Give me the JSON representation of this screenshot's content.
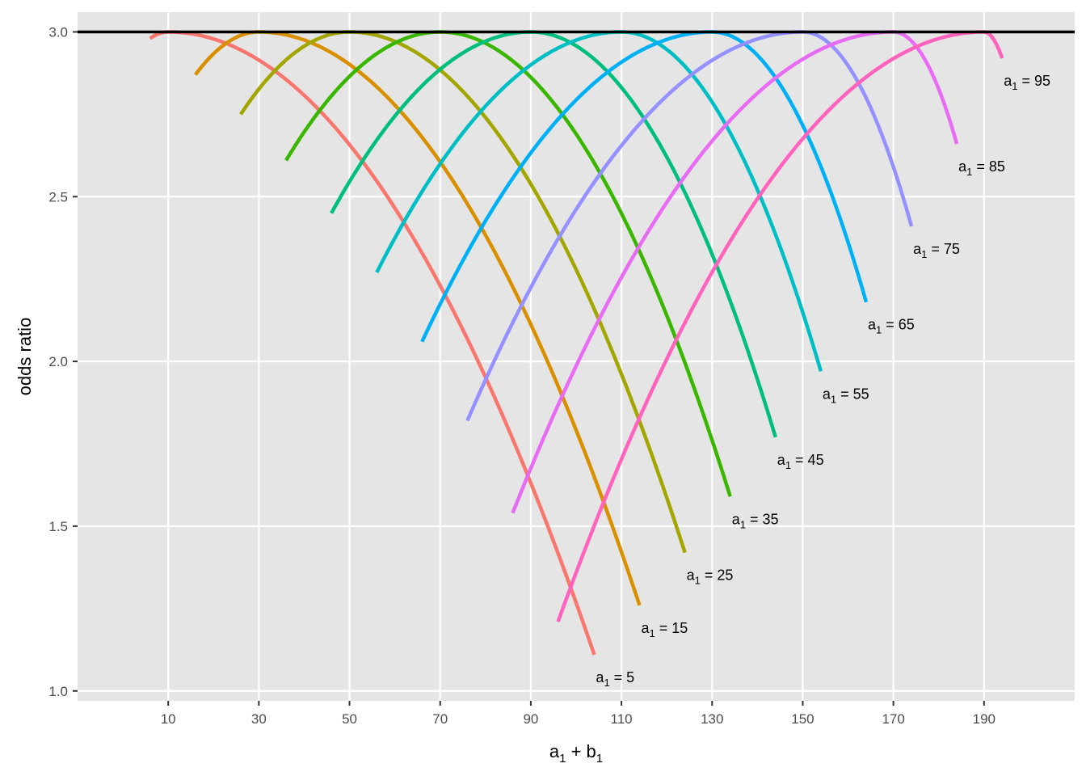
{
  "chart_data": {
    "type": "line",
    "xlabel": {
      "base1": "a",
      "sub1": "1",
      "op": "+",
      "base2": "b",
      "sub2": "1"
    },
    "ylabel": "odds ratio",
    "xlim": [
      -10,
      210
    ],
    "ylim": [
      0.97,
      3.06
    ],
    "x_ticks": [
      10,
      30,
      50,
      70,
      90,
      110,
      130,
      150,
      170,
      190
    ],
    "y_ticks": [
      1.0,
      1.5,
      2.0,
      2.5,
      3.0
    ],
    "y_tick_labels": [
      "1.0",
      "1.5",
      "2.0",
      "2.5",
      "3.0"
    ],
    "grid": true,
    "background": "#e5e5e5",
    "grid_color": "#ffffff",
    "reference_line": {
      "y": 3.0,
      "color": "#000000"
    },
    "label_prefix": {
      "base": "a",
      "sub": "1",
      "sep": " = "
    },
    "series": [
      {
        "a1": 5,
        "color": "#F8766D",
        "x_start": 6,
        "x_end": 104,
        "y_start": 2.98,
        "y_end": 1.11
      },
      {
        "a1": 15,
        "color": "#D89000",
        "x_start": 16,
        "x_end": 114,
        "y_start": 2.87,
        "y_end": 1.26
      },
      {
        "a1": 25,
        "color": "#A3A500",
        "x_start": 26,
        "x_end": 124,
        "y_start": 2.75,
        "y_end": 1.42
      },
      {
        "a1": 35,
        "color": "#39B600",
        "x_start": 36,
        "x_end": 134,
        "y_start": 2.61,
        "y_end": 1.59
      },
      {
        "a1": 45,
        "color": "#00BF7D",
        "x_start": 46,
        "x_end": 144,
        "y_start": 2.45,
        "y_end": 1.77
      },
      {
        "a1": 55,
        "color": "#00BFC4",
        "x_start": 56,
        "x_end": 154,
        "y_start": 2.27,
        "y_end": 1.97
      },
      {
        "a1": 65,
        "color": "#00B0F6",
        "x_start": 66,
        "x_end": 164,
        "y_start": 2.06,
        "y_end": 2.18
      },
      {
        "a1": 75,
        "color": "#9590FF",
        "x_start": 76,
        "x_end": 174,
        "y_start": 1.82,
        "y_end": 2.41
      },
      {
        "a1": 85,
        "color": "#E76BF3",
        "x_start": 86,
        "x_end": 184,
        "y_start": 1.54,
        "y_end": 2.66
      },
      {
        "a1": 95,
        "color": "#FF62BC",
        "x_start": 96,
        "x_end": 194,
        "y_start": 1.21,
        "y_end": 2.92
      }
    ]
  }
}
